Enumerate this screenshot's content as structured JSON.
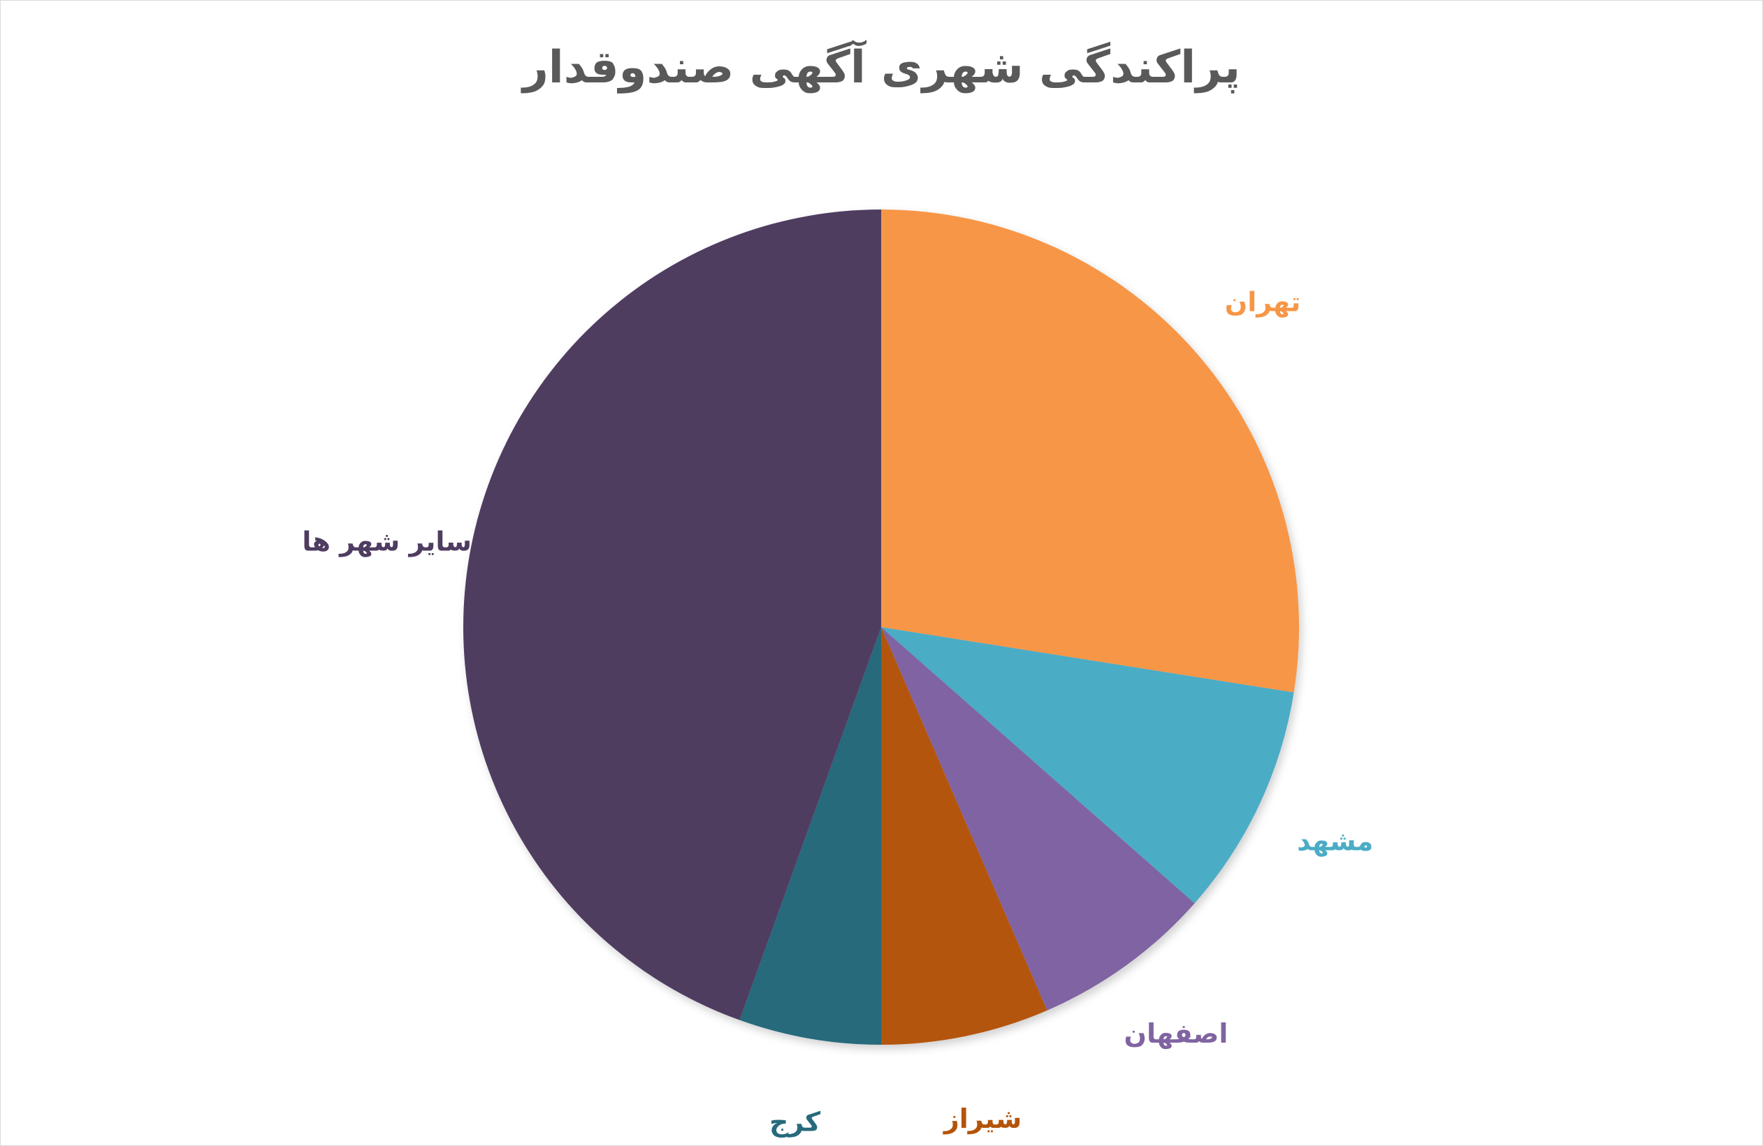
{
  "chart_data": {
    "type": "pie",
    "title": "پراکندگی شهری آگهی صندوقدار",
    "slices": [
      {
        "label": "تهران",
        "value": 27.5,
        "color": "#F79646"
      },
      {
        "label": "مشهد",
        "value": 9.0,
        "color": "#4BACC6"
      },
      {
        "label": "اصفهان",
        "value": 7.0,
        "color": "#8064A2"
      },
      {
        "label": "شیراز",
        "value": 6.5,
        "color": "#B45409"
      },
      {
        "label": "کرج",
        "value": 5.5,
        "color": "#276A7C"
      },
      {
        "label": "سایر شهر ها",
        "value": 44.5,
        "color": "#4F3C61"
      }
    ],
    "start_angle": "12 o'clock",
    "direction": "clockwise",
    "legend": "none",
    "labels": "outside"
  }
}
